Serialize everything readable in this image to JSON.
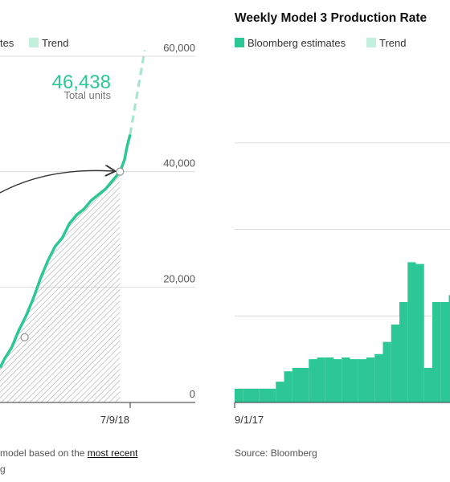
{
  "chart_data": [
    {
      "type": "area",
      "title": "",
      "legend": {
        "entries_partial": [
          "tes",
          "Trend"
        ],
        "placement": "top-left"
      },
      "xlabel": "",
      "ylabel": "",
      "x_tick_labels": [
        "7/9/18"
      ],
      "y_ticks": [
        0,
        20000,
        40000,
        60000
      ],
      "y_tick_labels": [
        "0",
        "20,000",
        "40,000",
        "60,000"
      ],
      "ylim": [
        0,
        60000
      ],
      "callout": {
        "value_label": "46,438",
        "sub_label": "Total units",
        "value": 46438
      },
      "series": [
        {
          "name": "Bloomberg estimates",
          "x": [
            0.0,
            0.03,
            0.08,
            0.13,
            0.18,
            0.23,
            0.28,
            0.33,
            0.38,
            0.43,
            0.48,
            0.53,
            0.58,
            0.63,
            0.68,
            0.73,
            0.78,
            0.83,
            0.86,
            0.88,
            0.9
          ],
          "values": [
            6000,
            7500,
            9500,
            12500,
            15000,
            18000,
            21500,
            24500,
            27000,
            28500,
            31000,
            32500,
            33500,
            35000,
            36000,
            37000,
            38500,
            40000,
            42000,
            44500,
            46438
          ]
        }
      ],
      "trend_projection": {
        "x": [
          0.9,
          1.0
        ],
        "values": [
          46438,
          61000
        ]
      },
      "markers": [
        {
          "x": 0.17,
          "value": 11300
        },
        {
          "x": 0.83,
          "value": 40000
        }
      ]
    },
    {
      "type": "bar",
      "title": "Weekly Model 3 Production Rate",
      "legend": {
        "entries": [
          "Bloomberg estimates",
          "Trend"
        ],
        "placement": "top-left"
      },
      "xlabel": "",
      "ylabel": "",
      "x_tick_labels": [
        "9/1/17"
      ],
      "values": [
        80,
        80,
        80,
        80,
        80,
        120,
        180,
        200,
        200,
        250,
        260,
        260,
        250,
        260,
        250,
        250,
        260,
        280,
        350,
        450,
        580,
        810,
        800,
        200,
        580,
        580,
        620
      ],
      "ylim": [
        0,
        2000
      ],
      "gridlines": [
        0,
        500,
        1000,
        1500
      ]
    }
  ],
  "left_footer": {
    "note_text": "model based on the",
    "note_link": "most recent",
    "source_partial": "g"
  },
  "right_footer": {
    "source": "Source: Bloomberg"
  },
  "colors": {
    "accent": "#2dc795",
    "trend": "#c2f0dc",
    "grid": "#dddddd",
    "text": "#333333",
    "muted": "#888888"
  }
}
